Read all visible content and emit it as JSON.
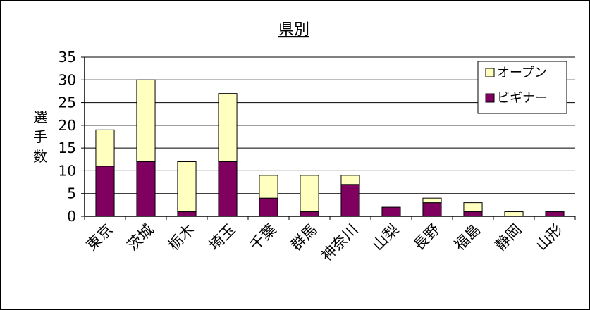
{
  "chart_data": {
    "type": "bar",
    "stacked": true,
    "title": "県別",
    "xlabel": "",
    "ylabel": "選手数",
    "ylim": [
      0,
      35
    ],
    "yticks": [
      0,
      5,
      10,
      15,
      20,
      25,
      30,
      35
    ],
    "grid": true,
    "legend_position": "top-right",
    "categories": [
      "東京",
      "茨城",
      "栃木",
      "埼玉",
      "千葉",
      "群馬",
      "神奈川",
      "山梨",
      "長野",
      "福島",
      "静岡",
      "山形"
    ],
    "series": [
      {
        "name": "ビギナー",
        "color": "#800060",
        "values": [
          11,
          12,
          1,
          12,
          4,
          1,
          7,
          2,
          3,
          1,
          0,
          1
        ]
      },
      {
        "name": "オープン",
        "color": "#FFFFC0",
        "values": [
          8,
          18,
          11,
          15,
          5,
          8,
          2,
          0,
          1,
          2,
          1,
          0
        ]
      }
    ],
    "legend_order": [
      "オープン",
      "ビギナー"
    ]
  }
}
